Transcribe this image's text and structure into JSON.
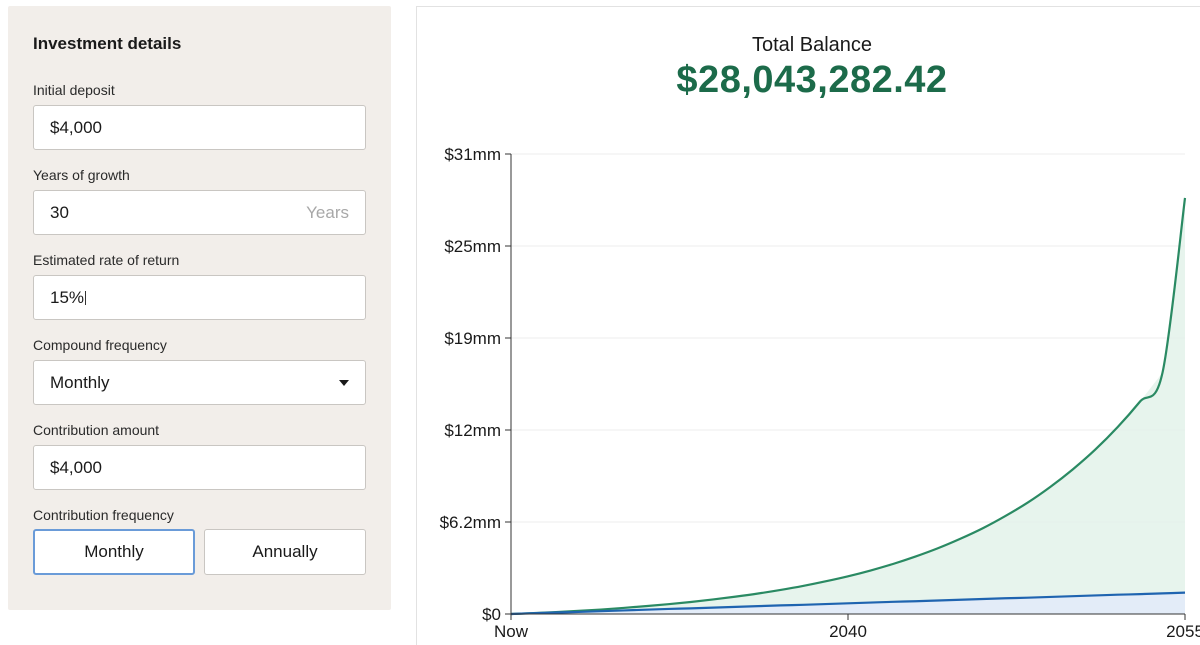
{
  "form": {
    "title": "Investment details",
    "initial_deposit": {
      "label": "Initial deposit",
      "value": "$4,000"
    },
    "years": {
      "label": "Years of growth",
      "value": "30",
      "suffix": "Years"
    },
    "rate": {
      "label": "Estimated rate of return",
      "value": "15%"
    },
    "compound": {
      "label": "Compound frequency",
      "selected": "Monthly"
    },
    "contribution": {
      "label": "Contribution amount",
      "value": "$4,000"
    },
    "contribution_frequency": {
      "label": "Contribution frequency",
      "options": [
        "Monthly",
        "Annually"
      ],
      "selected": "Monthly"
    }
  },
  "summary": {
    "label": "Total Balance",
    "value": "$28,043,282.42"
  },
  "colors": {
    "accent_green": "#1c6b4a",
    "balance_line": "#2a8a63",
    "balance_fill": "#e3f2ea",
    "contrib_line": "#1f64b0",
    "contrib_fill": "#e3ecf8",
    "active_border": "#6a9bd8"
  },
  "chart_data": {
    "type": "area",
    "x": [
      0,
      1,
      2,
      3,
      4,
      5,
      6,
      7,
      8,
      9,
      10,
      11,
      12,
      13,
      14,
      15,
      16,
      17,
      18,
      19,
      20,
      21,
      22,
      23,
      24,
      25,
      26,
      27,
      28,
      29,
      30
    ],
    "xticks": [
      {
        "value": 0,
        "label": "Now"
      },
      {
        "value": 15,
        "label": "2040"
      },
      {
        "value": 30,
        "label": "2055"
      }
    ],
    "yticks": [
      {
        "value": 0,
        "label": "$0"
      },
      {
        "value": 6.2,
        "label": "$6.2mm"
      },
      {
        "value": 12.4,
        "label": "$12mm"
      },
      {
        "value": 18.6,
        "label": "$19mm"
      },
      {
        "value": 24.8,
        "label": "$25mm"
      },
      {
        "value": 31,
        "label": "$31mm"
      }
    ],
    "ylim": [
      0,
      31
    ],
    "xlim": [
      0,
      30
    ],
    "grid": true,
    "series": [
      {
        "values": [
          0,
          0.06,
          0.13,
          0.21,
          0.3,
          0.41,
          0.53,
          0.66,
          0.81,
          0.98,
          1.17,
          1.38,
          1.62,
          1.89,
          2.2,
          2.54,
          2.93,
          3.37,
          3.87,
          4.43,
          5.07,
          5.78,
          6.6,
          7.51,
          8.56,
          9.74,
          11.07,
          12.59,
          14.32,
          16.27,
          28.04
        ]
      },
      {
        "values": [
          0,
          0.05,
          0.1,
          0.14,
          0.19,
          0.24,
          0.29,
          0.34,
          0.38,
          0.43,
          0.48,
          0.53,
          0.58,
          0.62,
          0.67,
          0.72,
          0.77,
          0.82,
          0.86,
          0.91,
          0.96,
          1.01,
          1.06,
          1.1,
          1.15,
          1.2,
          1.25,
          1.3,
          1.34,
          1.39,
          1.44
        ]
      }
    ]
  }
}
